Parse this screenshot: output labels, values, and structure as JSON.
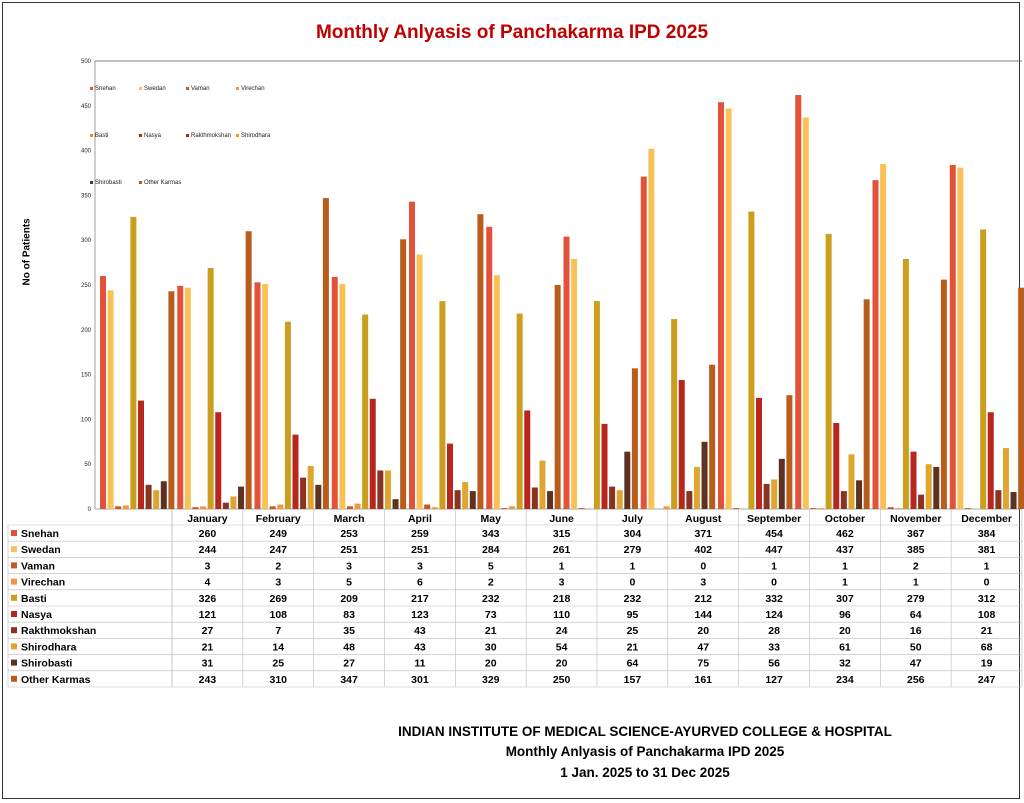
{
  "chart_data": {
    "type": "bar",
    "title": "Monthly Anlyasis of Panchakarma IPD  2025",
    "ylabel": "No of Patients",
    "xlabel": "",
    "ylim": [
      0,
      500
    ],
    "yticks": [
      0,
      50,
      100,
      150,
      200,
      250,
      300,
      350,
      400,
      450,
      500
    ],
    "grid": false,
    "legend_position": "top-left",
    "categories": [
      "January",
      "February",
      "March",
      "April",
      "May",
      "June",
      "July",
      "August",
      "September",
      "October",
      "November",
      "December"
    ],
    "series": [
      {
        "name": "Snehan",
        "color": "#e2513a",
        "values": [
          260,
          249,
          253,
          259,
          343,
          315,
          304,
          371,
          454,
          462,
          367,
          384
        ]
      },
      {
        "name": "Swedan",
        "color": "#f9c257",
        "values": [
          244,
          247,
          251,
          251,
          284,
          261,
          279,
          402,
          447,
          437,
          385,
          381
        ]
      },
      {
        "name": "Vaman",
        "color": "#c2582a",
        "values": [
          3,
          2,
          3,
          3,
          5,
          1,
          1,
          0,
          1,
          1,
          2,
          1
        ]
      },
      {
        "name": "Virechan",
        "color": "#f39642",
        "values": [
          4,
          3,
          5,
          6,
          2,
          3,
          0,
          3,
          0,
          1,
          1,
          0
        ]
      },
      {
        "name": "Basti",
        "color": "#cc9e1e",
        "values": [
          326,
          269,
          209,
          217,
          232,
          218,
          232,
          212,
          332,
          307,
          279,
          312
        ]
      },
      {
        "name": "Nasya",
        "color": "#b8261d",
        "values": [
          121,
          108,
          83,
          123,
          73,
          110,
          95,
          144,
          124,
          96,
          64,
          108
        ]
      },
      {
        "name": "Rakthmokshan",
        "color": "#8a3323",
        "values": [
          27,
          7,
          35,
          43,
          21,
          24,
          25,
          20,
          28,
          20,
          16,
          21
        ]
      },
      {
        "name": "Shirodhara",
        "color": "#dea531",
        "values": [
          21,
          14,
          48,
          43,
          30,
          54,
          21,
          47,
          33,
          61,
          50,
          68
        ]
      },
      {
        "name": "Shirobasti",
        "color": "#5e3223",
        "values": [
          31,
          25,
          27,
          11,
          20,
          20,
          64,
          75,
          56,
          32,
          47,
          19
        ]
      },
      {
        "name": "Other Karmas",
        "color": "#b85d1b",
        "values": [
          243,
          310,
          347,
          301,
          329,
          250,
          157,
          161,
          127,
          234,
          256,
          247
        ]
      }
    ]
  },
  "footer": {
    "line1": "INDIAN INSTITUTE OF MEDICAL SCIENCE-AYURVED COLLEGE & HOSPITAL",
    "line2": "Monthly Anlyasis of Panchakarma  IPD   2025",
    "line3": "1 Jan. 2025 to 31 Dec 2025"
  }
}
